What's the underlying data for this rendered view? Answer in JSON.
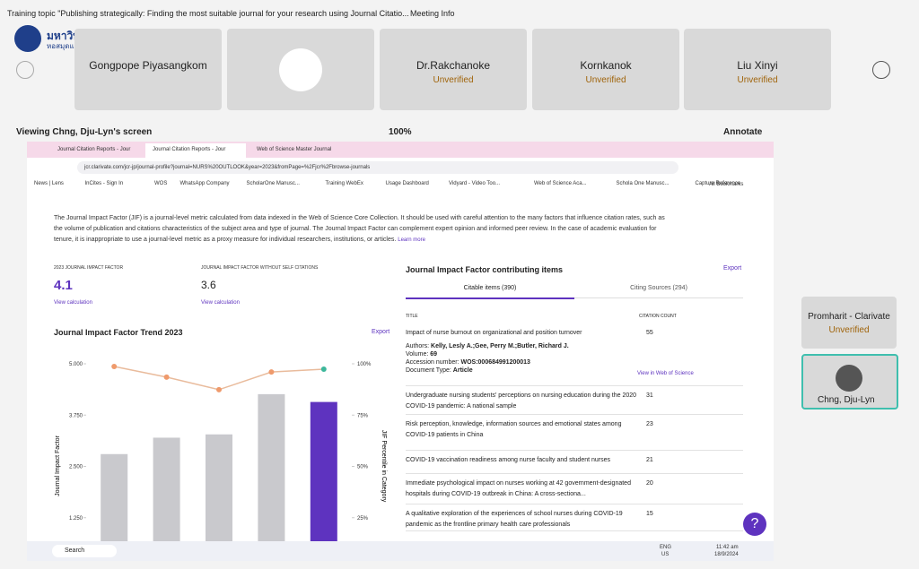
{
  "meeting": {
    "title": "Training topic \"Publishing strategically: Finding the most suitable journal for your research using Journal Citatio...",
    "info": "Meeting Info"
  },
  "logo": {
    "name": "มหาวิทยาลัยมหิดล",
    "sub": "หอสมุดและคลังความรู้"
  },
  "participants": [
    {
      "name": "Gongpope Piyasangkom"
    },
    {
      "name": "Dr.Rakchanoke",
      "status": "Unverified"
    },
    {
      "name": "Kornkanok",
      "status": "Unverified"
    },
    {
      "name": "Liu Xinyi",
      "status": "Unverified"
    }
  ],
  "share": {
    "viewing": "Viewing Chng, Dju-Lyn's screen",
    "zoom": "100%",
    "annotate": "Annotate"
  },
  "browser": {
    "tabs": [
      "Journal Citation Reports - Jour",
      "Journal Citation Reports - Jour",
      "Web of Science Master Journal"
    ],
    "url": "jcr.clarivate.com/jcr-jp/journal-profile?journal=NURS%20OUTLOOK&year=2023&fromPage=%2Fjcr%2Fbrowse-journals",
    "bookmarks": [
      "News | Lens",
      "InCites - Sign In",
      "WOS",
      "WhatsApp Company",
      "ScholarOne Manusc...",
      "Training WebEx",
      "Usage Dashboard",
      "Vidyard - Video Too...",
      "Web of Science Aca...",
      "Schola One Manusc...",
      "Capture Reference"
    ],
    "all_bookmarks": "All Bookmarks"
  },
  "page": {
    "intro": "The Journal Impact Factor (JIF) is a journal-level metric calculated from data indexed in the Web of Science Core Collection. It should be used with careful attention to the many factors that influence citation rates, such as the volume of publication and citations characteristics of the subject area and type of journal. The Journal Impact Factor can complement expert opinion and informed peer review. In the case of academic evaluation for tenure, it is inappropriate to use a journal-level metric as a proxy measure for individual researchers, institutions, or articles.",
    "learn_more": "Learn more",
    "metrics": [
      {
        "label": "2023 JOURNAL IMPACT FACTOR",
        "value": 4.1,
        "link": "View calculation"
      },
      {
        "label": "JOURNAL IMPACT FACTOR WITHOUT SELF CITATIONS",
        "value": 3.6,
        "link": "View calculation"
      }
    ],
    "chart": {
      "type": "bar",
      "title": "Journal Impact Factor Trend 2023",
      "export": "Export",
      "ylabel": "Journal Impact Factor",
      "y2label": "JIF Percentile in Category",
      "values": [
        2.8,
        3.2,
        3.28,
        4.26,
        4.07
      ],
      "colors": [
        "#c9c9cd",
        "#c9c9cd",
        "#c9c9cd",
        "#c9c9cd",
        "#5e33bf"
      ],
      "percentiles": [
        98.7,
        93.5,
        87.4,
        96,
        97.4
      ],
      "line_color": "#e9bb9c",
      "dot_colors": [
        "#ef9a6c",
        "#ef9a6c",
        "#ef9a6c",
        "#ef9a6c",
        "#3db79b"
      ],
      "ylim": [
        0,
        5
      ],
      "yticks": [
        {
          "value": 1.25,
          "label": "1.250"
        },
        {
          "value": 2.5,
          "label": "2.500"
        },
        {
          "value": 3.75,
          "label": "3.750"
        },
        {
          "value": 5,
          "label": "5.000"
        }
      ],
      "y2lim": [
        0,
        100
      ],
      "y2ticks": [
        {
          "value": 25,
          "label": "25%"
        },
        {
          "value": 50,
          "label": "50%"
        },
        {
          "value": 75,
          "label": "75%"
        },
        {
          "value": 100,
          "label": "100%"
        }
      ]
    },
    "items": {
      "title": "Journal Impact Factor contributing items",
      "export": "Export",
      "tabs": [
        "Citable items (390)",
        "Citing Sources (294)"
      ],
      "headers": [
        "TITLE",
        "CITATION COUNT"
      ],
      "rows": [
        {
          "title": "Impact of nurse burnout on organizational and position turnover",
          "count": 55
        },
        {
          "title": "Undergraduate nursing students' perceptions on nursing education during the 2020 COVID-19 pandemic: A national sample",
          "count": 31
        },
        {
          "title": "Risk perception, knowledge, information sources and emotional states among COVID-19 patients in China",
          "count": 23
        },
        {
          "title": "COVID-19 vaccination readiness among nurse faculty and student nurses",
          "count": 21
        },
        {
          "title": "Immediate psychological impact on nurses working at 42 government-designated hospitals during COVID-19 outbreak in China: A cross-sectiona...",
          "count": 20
        },
        {
          "title": "A qualitative exploration of the experiences of school nurses during COVID-19 pandemic as the frontline primary health care professionals",
          "count": 15
        }
      ],
      "detail": {
        "authors_label": "Authors:",
        "authors": "Kelly, Lesly A.;Gee, Perry M.;Butler, Richard J.",
        "volume_label": "Volume:",
        "volume": 69,
        "accession_label": "Accession number:",
        "accession": "WOS:000684991200013",
        "doctype_label": "Document Type:",
        "doctype": "Article",
        "link": "View in Web of Science"
      }
    }
  },
  "side": [
    {
      "name": "Promharit - Clarivate",
      "status": "Unverified"
    },
    {
      "name": "Chng, Dju-Lyn"
    }
  ],
  "taskbar": {
    "search": "Search",
    "lang": "ENG",
    "region": "US",
    "time": "11:42 am",
    "date": "18/9/2024"
  }
}
